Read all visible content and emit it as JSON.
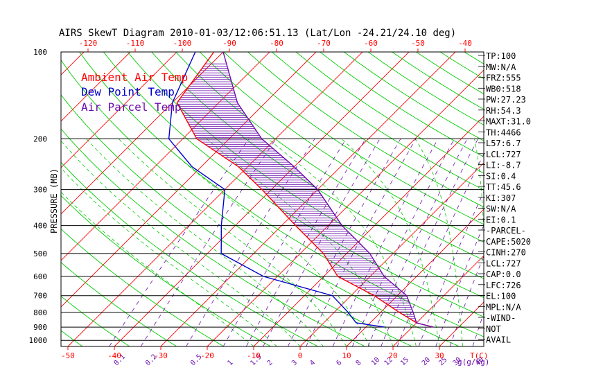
{
  "title": "AIRS SkewT Diagram 2010-01-03/12:06:51.13 (Lat/Lon -24.21/24.10 deg)",
  "legend": [
    {
      "label": "Ambient Air Temp",
      "color": "#ff0000"
    },
    {
      "label": "Dew Point Temp",
      "color": "#0000cc"
    },
    {
      "label": "Air Parcel Temp",
      "color": "#6a0dad"
    }
  ],
  "colors": {
    "isotherm": "#ff0000",
    "dry_adiabat": "#00cc00",
    "moist_adiabat": "#00cc00",
    "mixing_ratio": "#6a0dad",
    "isobar": "#000000",
    "cape_hatch": "#6a0dad"
  },
  "chart_data": {
    "type": "line",
    "ylabel": "PRESSURE (MB)",
    "pressure_ticks": [
      "100",
      "200",
      "300",
      "400",
      "500",
      "600",
      "700",
      "800",
      "900",
      "1000"
    ],
    "pressure_levels": [
      100,
      200,
      300,
      400,
      500,
      600,
      700,
      800,
      900,
      1000
    ],
    "pressure_range": [
      100,
      1000
    ],
    "bottom_temp_ticks": [
      "-50",
      "-40",
      "-30",
      "-20",
      "-10",
      "0",
      "10",
      "20",
      "30"
    ],
    "bottom_temp_values": [
      -50,
      -40,
      -30,
      -20,
      -10,
      0,
      10,
      20,
      30
    ],
    "bottom_axis_unit": "T(C)",
    "top_temp_ticks": [
      "-120",
      "-110",
      "-100",
      "-90",
      "-80",
      "-70",
      "-60",
      "-50",
      "-40"
    ],
    "top_temp_values": [
      -120,
      -110,
      -100,
      -90,
      -80,
      -70,
      -60,
      -50,
      -40
    ],
    "mixing_ratio_ticks": [
      "0.1",
      "0.2",
      "0.5",
      "1",
      "1.5",
      "2",
      "3",
      "4",
      "6",
      "8",
      "10",
      "12",
      "15",
      "20",
      "25",
      "30",
      "40"
    ],
    "mixing_ratio_values": [
      0.1,
      0.2,
      0.5,
      1,
      1.5,
      2,
      3,
      4,
      6,
      8,
      10,
      12,
      15,
      20,
      25,
      30,
      40
    ],
    "mixing_ratio_unit": "g(g/kg)",
    "series": [
      {
        "name": "Ambient Air Temp",
        "color": "#ff0000",
        "points": [
          [
            100,
            -82
          ],
          [
            150,
            -79
          ],
          [
            200,
            -67
          ],
          [
            250,
            -52
          ],
          [
            300,
            -42
          ],
          [
            400,
            -27
          ],
          [
            500,
            -15
          ],
          [
            600,
            -7
          ],
          [
            700,
            5
          ],
          [
            800,
            14
          ],
          [
            870,
            20
          ],
          [
            900,
            24.5
          ]
        ]
      },
      {
        "name": "Dew Point Temp",
        "color": "#0000cc",
        "points": [
          [
            100,
            -86
          ],
          [
            150,
            -80
          ],
          [
            200,
            -73
          ],
          [
            250,
            -62
          ],
          [
            300,
            -50
          ],
          [
            400,
            -43
          ],
          [
            500,
            -37
          ],
          [
            600,
            -23
          ],
          [
            700,
            -4
          ],
          [
            800,
            3
          ],
          [
            870,
            7
          ],
          [
            900,
            14
          ]
        ]
      },
      {
        "name": "Air Parcel Temp",
        "color": "#6a0dad",
        "points": [
          [
            100,
            -80
          ],
          [
            150,
            -66
          ],
          [
            200,
            -53
          ],
          [
            250,
            -40
          ],
          [
            300,
            -30
          ],
          [
            400,
            -17
          ],
          [
            500,
            -5
          ],
          [
            600,
            3
          ],
          [
            700,
            12
          ],
          [
            800,
            17
          ],
          [
            870,
            20
          ],
          [
            900,
            24.5
          ]
        ]
      }
    ],
    "indices": [
      "TP:100",
      "MW:N/A",
      "FRZ:555",
      "WB0:518",
      "PW:27.23",
      "RH:54.3",
      "MAXT:31.0",
      "TH:4466",
      "L57:6.7",
      "LCL:727",
      "LI:-8.7",
      "SI:0.4",
      "TT:45.6",
      "KI:307",
      "SW:N/A",
      "EI:0.1",
      "-PARCEL-",
      "CAPE:5020",
      "CINH:270",
      "LCL:727",
      "CAP:0.0",
      "LFC:726",
      "EL:100",
      "MPL:N/A",
      "-WIND-",
      "NOT",
      "AVAIL"
    ]
  }
}
